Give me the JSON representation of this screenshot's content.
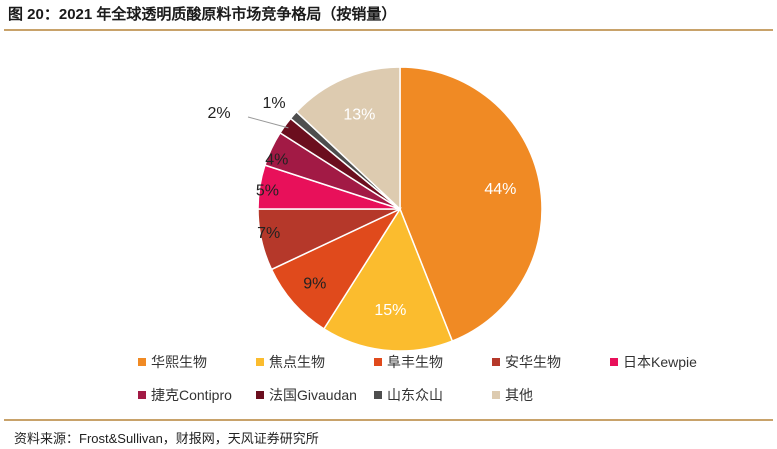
{
  "title": "图 20：2021 年全球透明质酸原料市场竞争格局（按销量）",
  "source": "资料来源：Frost&Sullivan，财报网，天风证券研究所",
  "chart_data": {
    "type": "pie",
    "title": "2021 年全球透明质酸原料市场竞争格局（按销量）",
    "unit": "%",
    "slices": [
      {
        "name": "华熙生物",
        "value": 44,
        "label": "44%",
        "color": "#F08A24"
      },
      {
        "name": "焦点生物",
        "value": 15,
        "label": "15%",
        "color": "#FBBC2E"
      },
      {
        "name": "阜丰生物",
        "value": 9,
        "label": "9%",
        "color": "#E04A1C"
      },
      {
        "name": "安华生物",
        "value": 7,
        "label": "7%",
        "color": "#B5382A"
      },
      {
        "name": "日本Kewpie",
        "value": 5,
        "label": "5%",
        "color": "#E8105A"
      },
      {
        "name": "捷克Contipro",
        "value": 4,
        "label": "4%",
        "color": "#A21A45"
      },
      {
        "name": "法国Givaudan",
        "value": 2,
        "label": "2%",
        "color": "#6B0E1E"
      },
      {
        "name": "山东众山",
        "value": 1,
        "label": "1%",
        "color": "#4E4E4E"
      },
      {
        "name": "其他",
        "value": 13,
        "label": "13%",
        "color": "#DDCBB0"
      }
    ]
  }
}
